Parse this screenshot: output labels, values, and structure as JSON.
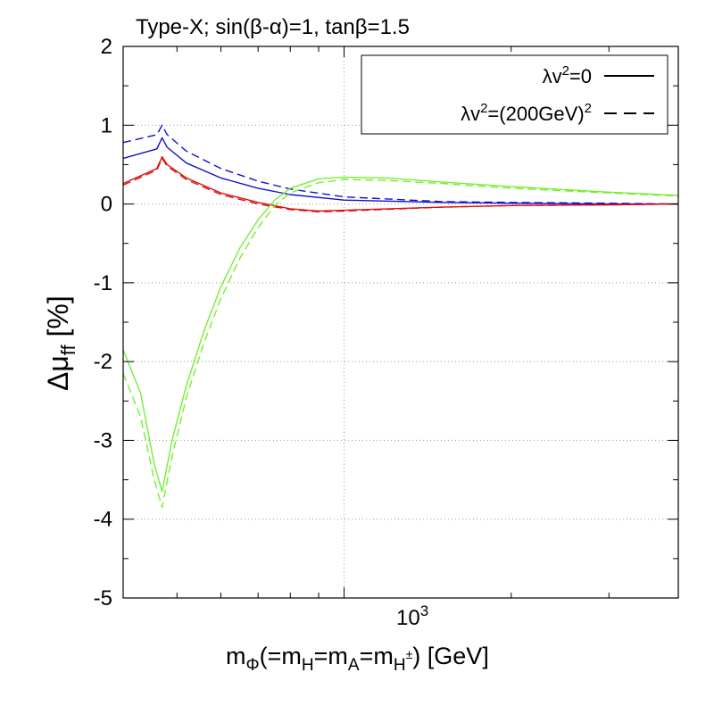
{
  "chart_data": {
    "type": "line",
    "title": "Type-X; sin(β-α)=1, tanβ=1.5",
    "xlabel": {
      "base": "m",
      "base_sub": "Φ",
      "part1": "(=m",
      "sub1": "H",
      "part2": "=m",
      "sub2": "A",
      "part3": "=m",
      "sub3": "H",
      "sub3_sup": "±",
      "part4": ") [GeV]"
    },
    "ylabel": {
      "base": "Δμ",
      "sub": "ff",
      "unit": " [%]"
    },
    "x_scale": "log",
    "xlim": [
      400,
      4000
    ],
    "ylim": [
      -5,
      2
    ],
    "y_ticks": [
      {
        "value": -5,
        "label": "-5"
      },
      {
        "value": -4,
        "label": "-4"
      },
      {
        "value": -3,
        "label": "-3"
      },
      {
        "value": -2,
        "label": "-2"
      },
      {
        "value": -1,
        "label": "-1"
      },
      {
        "value": 0,
        "label": "0"
      },
      {
        "value": 1,
        "label": "1"
      },
      {
        "value": 2,
        "label": "2"
      }
    ],
    "x_major_tick": {
      "value": 1000,
      "base": "10",
      "exp": "3"
    },
    "x_minor_ticks": [
      400,
      500,
      600,
      700,
      800,
      900,
      2000,
      3000,
      4000
    ],
    "grid": true,
    "legend": {
      "placement": "top-right",
      "entries": [
        {
          "base": "λv",
          "sup": "2",
          "rest": "=0",
          "dash": "solid"
        },
        {
          "base": "λv",
          "sup": "2",
          "rest": "=(200GeV)",
          "sup2": "2",
          "dash": "dashed"
        }
      ]
    },
    "series": [
      {
        "color": "#1111cc",
        "dash": "solid",
        "points": [
          [
            400,
            0.58
          ],
          [
            460,
            0.7
          ],
          [
            470,
            0.84
          ],
          [
            480,
            0.72
          ],
          [
            520,
            0.52
          ],
          [
            600,
            0.33
          ],
          [
            700,
            0.2
          ],
          [
            800,
            0.12
          ],
          [
            1000,
            0.05
          ],
          [
            1500,
            0.02
          ],
          [
            2000,
            0.01
          ],
          [
            3000,
            0.0
          ],
          [
            4000,
            0.0
          ]
        ]
      },
      {
        "color": "#1111cc",
        "dash": "dashed",
        "points": [
          [
            400,
            0.78
          ],
          [
            460,
            0.88
          ],
          [
            470,
            1.0
          ],
          [
            480,
            0.88
          ],
          [
            520,
            0.67
          ],
          [
            600,
            0.45
          ],
          [
            700,
            0.29
          ],
          [
            800,
            0.19
          ],
          [
            1000,
            0.09
          ],
          [
            1500,
            0.03
          ],
          [
            2000,
            0.02
          ],
          [
            3000,
            0.01
          ],
          [
            4000,
            0.0
          ]
        ]
      },
      {
        "color": "#dd1111",
        "dash": "solid",
        "points": [
          [
            400,
            0.26
          ],
          [
            460,
            0.45
          ],
          [
            470,
            0.6
          ],
          [
            480,
            0.5
          ],
          [
            520,
            0.33
          ],
          [
            600,
            0.14
          ],
          [
            700,
            0.02
          ],
          [
            800,
            -0.06
          ],
          [
            900,
            -0.09
          ],
          [
            1000,
            -0.08
          ],
          [
            1500,
            -0.04
          ],
          [
            2000,
            -0.02
          ],
          [
            3000,
            -0.01
          ],
          [
            4000,
            0.0
          ]
        ]
      },
      {
        "color": "#dd1111",
        "dash": "dashed",
        "points": [
          [
            400,
            0.24
          ],
          [
            460,
            0.43
          ],
          [
            470,
            0.58
          ],
          [
            480,
            0.48
          ],
          [
            520,
            0.31
          ],
          [
            600,
            0.12
          ],
          [
            700,
            0.0
          ],
          [
            800,
            -0.07
          ],
          [
            900,
            -0.1
          ],
          [
            1000,
            -0.09
          ],
          [
            1500,
            -0.04
          ],
          [
            2000,
            -0.02
          ],
          [
            3000,
            -0.01
          ],
          [
            4000,
            0.0
          ]
        ]
      },
      {
        "color": "#77ee33",
        "dash": "solid",
        "points": [
          [
            400,
            -1.85
          ],
          [
            430,
            -2.4
          ],
          [
            455,
            -3.3
          ],
          [
            470,
            -3.65
          ],
          [
            490,
            -3.0
          ],
          [
            520,
            -2.3
          ],
          [
            560,
            -1.6
          ],
          [
            600,
            -1.05
          ],
          [
            650,
            -0.55
          ],
          [
            700,
            -0.2
          ],
          [
            750,
            0.05
          ],
          [
            800,
            0.2
          ],
          [
            900,
            0.32
          ],
          [
            1000,
            0.34
          ],
          [
            1200,
            0.33
          ],
          [
            1500,
            0.28
          ],
          [
            2000,
            0.22
          ],
          [
            3000,
            0.15
          ],
          [
            4000,
            0.11
          ]
        ]
      },
      {
        "color": "#77ee33",
        "dash": "dashed",
        "points": [
          [
            400,
            -2.15
          ],
          [
            430,
            -2.7
          ],
          [
            455,
            -3.5
          ],
          [
            470,
            -3.85
          ],
          [
            490,
            -3.2
          ],
          [
            520,
            -2.45
          ],
          [
            560,
            -1.75
          ],
          [
            600,
            -1.2
          ],
          [
            650,
            -0.68
          ],
          [
            700,
            -0.3
          ],
          [
            750,
            -0.02
          ],
          [
            800,
            0.14
          ],
          [
            900,
            0.27
          ],
          [
            1000,
            0.31
          ],
          [
            1200,
            0.3
          ],
          [
            1500,
            0.26
          ],
          [
            2000,
            0.2
          ],
          [
            3000,
            0.14
          ],
          [
            4000,
            0.1
          ]
        ]
      }
    ]
  }
}
